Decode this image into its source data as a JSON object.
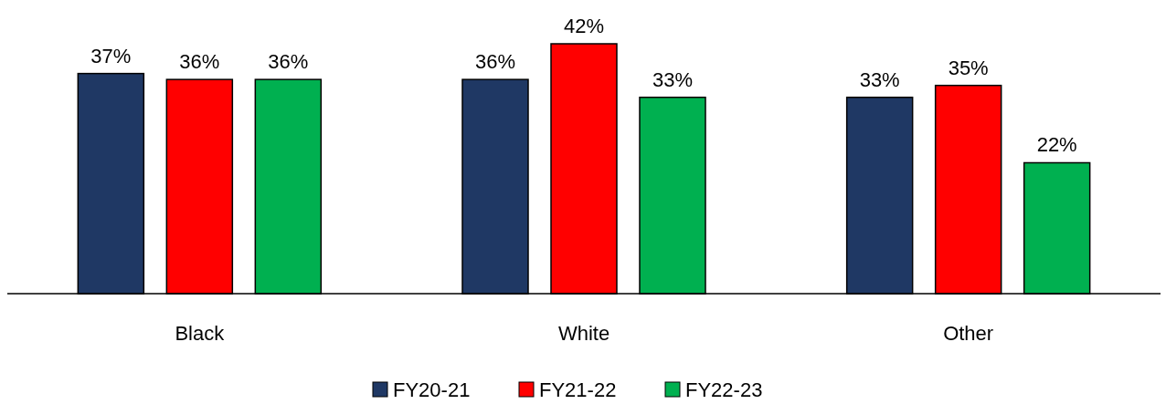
{
  "chart_data": {
    "type": "bar",
    "categories": [
      "Black",
      "White",
      "Other"
    ],
    "series": [
      {
        "name": "FY20-21",
        "color": "#1f3864",
        "values": [
          37,
          36,
          33
        ],
        "value_labels": [
          "37%",
          "36%",
          "33%"
        ]
      },
      {
        "name": "FY21-22",
        "color": "#ff0000",
        "values": [
          36,
          42,
          35
        ],
        "value_labels": [
          "36%",
          "42%",
          "35%"
        ]
      },
      {
        "name": "FY22-23",
        "color": "#00b050",
        "values": [
          36,
          33,
          22
        ],
        "value_labels": [
          "36%",
          "33%",
          "22%"
        ]
      }
    ],
    "legend": "bottom"
  }
}
